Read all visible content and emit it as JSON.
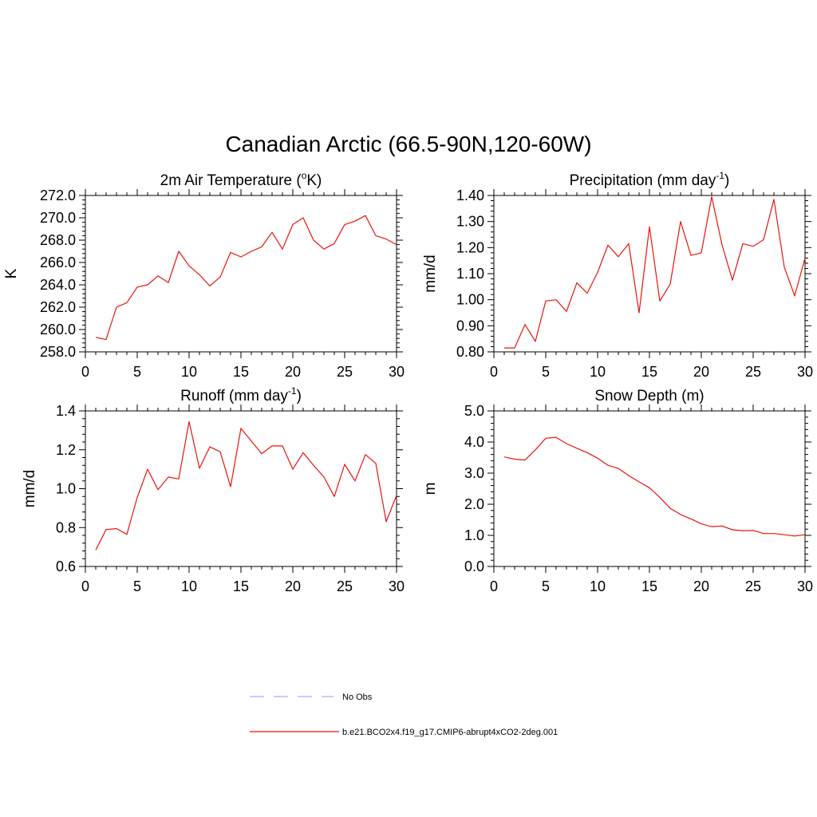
{
  "page_title": "Canadian Arctic (66.5-90N,120-60W)",
  "colors": {
    "model_line": "#e8140c",
    "obs_line": "#a9a9ff",
    "axis": "#000000"
  },
  "legend": {
    "obs_label": "No Obs",
    "model_label": "b.e21.BCO2x4.f19_g17.CMIP6-abrupt4xCO2-2deg.001"
  },
  "chart_data": [
    {
      "type": "line",
      "title_main": "2m Air Temperature (",
      "title_sup": "o",
      "title_tail": "K)",
      "ylabel": "K",
      "xlim": [
        0,
        30
      ],
      "ylim": [
        258,
        272
      ],
      "xticks": [
        "0",
        "5",
        "10",
        "15",
        "20",
        "25",
        "30"
      ],
      "yticks": [
        "258.0",
        "260.0",
        "262.0",
        "264.0",
        "266.0",
        "268.0",
        "270.0",
        "272.0"
      ],
      "series": [
        {
          "name": "b.e21.BCO2x4.f19_g17.CMIP6-abrupt4xCO2-2deg.001",
          "x": [
            1,
            2,
            3,
            4,
            5,
            6,
            7,
            8,
            9,
            10,
            11,
            12,
            13,
            14,
            15,
            16,
            17,
            18,
            19,
            20,
            21,
            22,
            23,
            24,
            25,
            26,
            27,
            28,
            29,
            30
          ],
          "values": [
            259.3,
            259.1,
            262.0,
            262.4,
            263.8,
            264.0,
            264.8,
            264.2,
            267.0,
            265.7,
            264.9,
            263.9,
            264.7,
            266.9,
            266.5,
            267.0,
            267.4,
            268.7,
            267.2,
            269.4,
            270.0,
            268.0,
            267.2,
            267.7,
            269.4,
            269.7,
            270.2,
            268.4,
            268.1,
            267.6
          ]
        }
      ]
    },
    {
      "type": "line",
      "title_main": "Precipitation (mm day",
      "title_sup": "-1",
      "title_tail": ")",
      "ylabel": "mm/d",
      "xlim": [
        0,
        30
      ],
      "ylim": [
        0.8,
        1.4
      ],
      "xticks": [
        "0",
        "5",
        "10",
        "15",
        "20",
        "25",
        "30"
      ],
      "yticks": [
        "0.80",
        "0.90",
        "1.00",
        "1.10",
        "1.20",
        "1.30",
        "1.40"
      ],
      "series": [
        {
          "name": "b.e21.BCO2x4.f19_g17.CMIP6-abrupt4xCO2-2deg.001",
          "x": [
            1,
            2,
            3,
            4,
            5,
            6,
            7,
            8,
            9,
            10,
            11,
            12,
            13,
            14,
            15,
            16,
            17,
            18,
            19,
            20,
            21,
            22,
            23,
            24,
            25,
            26,
            27,
            28,
            29,
            30
          ],
          "values": [
            0.815,
            0.815,
            0.905,
            0.84,
            0.995,
            1.0,
            0.955,
            1.065,
            1.025,
            1.105,
            1.21,
            1.165,
            1.215,
            0.95,
            1.28,
            0.995,
            1.06,
            1.3,
            1.17,
            1.18,
            1.395,
            1.21,
            1.075,
            1.215,
            1.205,
            1.23,
            1.385,
            1.125,
            1.015,
            1.16
          ]
        }
      ]
    },
    {
      "type": "line",
      "title_main": "Runoff (mm day",
      "title_sup": "-1",
      "title_tail": ")",
      "ylabel": "mm/d",
      "xlim": [
        0,
        30
      ],
      "ylim": [
        0.6,
        1.4
      ],
      "xticks": [
        "0",
        "5",
        "10",
        "15",
        "20",
        "25",
        "30"
      ],
      "yticks": [
        "0.6",
        "0.8",
        "1.0",
        "1.2",
        "1.4"
      ],
      "series": [
        {
          "name": "b.e21.BCO2x4.f19_g17.CMIP6-abrupt4xCO2-2deg.001",
          "x": [
            1,
            2,
            3,
            4,
            5,
            6,
            7,
            8,
            9,
            10,
            11,
            12,
            13,
            14,
            15,
            16,
            17,
            18,
            19,
            20,
            21,
            22,
            23,
            24,
            25,
            26,
            27,
            28,
            29,
            30
          ],
          "values": [
            0.685,
            0.79,
            0.795,
            0.765,
            0.955,
            1.1,
            0.995,
            1.06,
            1.05,
            1.345,
            1.105,
            1.215,
            1.19,
            1.01,
            1.31,
            1.245,
            1.18,
            1.22,
            1.22,
            1.1,
            1.185,
            1.12,
            1.06,
            0.96,
            1.125,
            1.04,
            1.175,
            1.13,
            0.83,
            0.965
          ]
        }
      ]
    },
    {
      "type": "line",
      "title_main": "Snow Depth (m)",
      "title_sup": "",
      "title_tail": "",
      "ylabel": "m",
      "xlim": [
        0,
        30
      ],
      "ylim": [
        0,
        5
      ],
      "xticks": [
        "0",
        "5",
        "10",
        "15",
        "20",
        "25",
        "30"
      ],
      "yticks": [
        "0.0",
        "1.0",
        "2.0",
        "3.0",
        "4.0",
        "5.0"
      ],
      "series": [
        {
          "name": "b.e21.BCO2x4.f19_g17.CMIP6-abrupt4xCO2-2deg.001",
          "x": [
            1,
            2,
            3,
            4,
            5,
            6,
            7,
            8,
            9,
            10,
            11,
            12,
            13,
            14,
            15,
            16,
            17,
            18,
            19,
            20,
            21,
            22,
            23,
            24,
            25,
            26,
            27,
            28,
            29,
            30
          ],
          "values": [
            3.52,
            3.45,
            3.42,
            3.75,
            4.12,
            4.15,
            3.95,
            3.8,
            3.66,
            3.48,
            3.25,
            3.15,
            2.92,
            2.72,
            2.53,
            2.22,
            1.87,
            1.67,
            1.53,
            1.37,
            1.28,
            1.3,
            1.18,
            1.15,
            1.16,
            1.06,
            1.06,
            1.02,
            0.98,
            1.02
          ]
        }
      ]
    }
  ]
}
